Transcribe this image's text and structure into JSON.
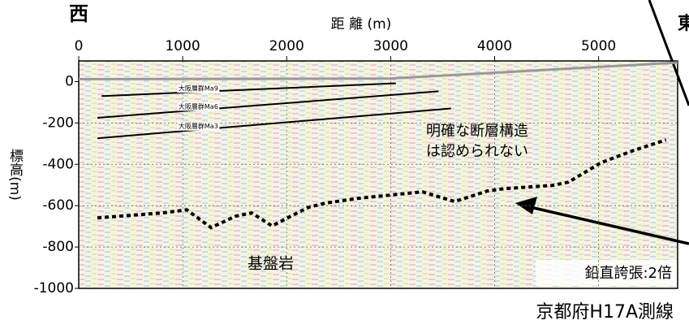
{
  "chart_data": {
    "type": "profile",
    "x_label": "距 離 (m)",
    "y_label": "標高(m)",
    "west_label": "西",
    "east_label": "東",
    "xlim": [
      0,
      5760
    ],
    "xticks": [
      0,
      1000,
      2000,
      3000,
      4000,
      5000
    ],
    "ylim": [
      -1000,
      100
    ],
    "yticks": [
      0,
      -200,
      -400,
      -600,
      -800,
      -1000
    ],
    "grid": true,
    "series": [
      {
        "name": "大阪層群Ma9",
        "color": "#000000",
        "x": [
          220,
          3050
        ],
        "values": [
          -70,
          -8
        ]
      },
      {
        "name": "大阪層群Ma6",
        "color": "#000000",
        "x": [
          180,
          3460
        ],
        "values": [
          -175,
          -47
        ]
      },
      {
        "name": "大阪層群Ma3",
        "color": "#000000",
        "x": [
          180,
          3580
        ],
        "values": [
          -274,
          -130
        ]
      },
      {
        "color": "#000000",
        "dashed": true,
        "x": [
          180,
          805,
          1039,
          1273,
          1508,
          1664,
          1859,
          2055,
          2211,
          2367,
          2680,
          2992,
          3305,
          3617,
          3930,
          4086,
          4555,
          4711,
          5023,
          5336,
          5648
        ],
        "values": [
          -659,
          -635,
          -620,
          -706,
          -651,
          -635,
          -698,
          -647,
          -608,
          -588,
          -565,
          -549,
          -533,
          -580,
          -529,
          -518,
          -502,
          -486,
          -392,
          -333,
          -282
        ]
      },
      {
        "color": "#999999",
        "x": [
          0,
          3000,
          5760
        ],
        "values": [
          12,
          15,
          92
        ]
      }
    ],
    "annotations": [
      "明確な断層構造",
      "は認められない",
      "基盤岩",
      "鉛直誇張:2倍",
      "京都府H17A測線"
    ]
  }
}
